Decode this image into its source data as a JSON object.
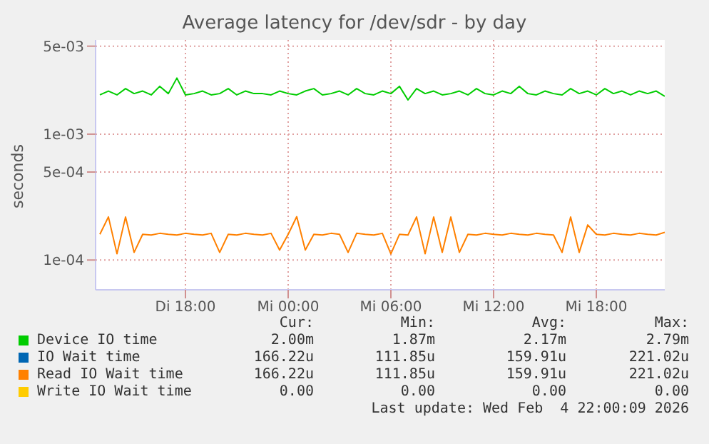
{
  "chart_data": {
    "type": "line",
    "title": "Average latency for /dev/sdr - by day",
    "ylabel": "seconds",
    "x": [
      "2026-02-03T13:00",
      "2026-02-03T13:30",
      "2026-02-03T14:00",
      "2026-02-03T14:30",
      "2026-02-03T15:00",
      "2026-02-03T15:30",
      "2026-02-03T16:00",
      "2026-02-03T16:30",
      "2026-02-03T17:00",
      "2026-02-03T17:30",
      "2026-02-03T18:00",
      "2026-02-03T18:30",
      "2026-02-03T19:00",
      "2026-02-03T19:30",
      "2026-02-03T20:00",
      "2026-02-03T20:30",
      "2026-02-03T21:00",
      "2026-02-03T21:30",
      "2026-02-03T22:00",
      "2026-02-03T22:30",
      "2026-02-03T23:00",
      "2026-02-03T23:30",
      "2026-02-04T00:00",
      "2026-02-04T00:30",
      "2026-02-04T01:00",
      "2026-02-04T01:30",
      "2026-02-04T02:00",
      "2026-02-04T02:30",
      "2026-02-04T03:00",
      "2026-02-04T03:30",
      "2026-02-04T04:00",
      "2026-02-04T04:30",
      "2026-02-04T05:00",
      "2026-02-04T05:30",
      "2026-02-04T06:00",
      "2026-02-04T06:30",
      "2026-02-04T07:00",
      "2026-02-04T07:30",
      "2026-02-04T08:00",
      "2026-02-04T08:30",
      "2026-02-04T09:00",
      "2026-02-04T09:30",
      "2026-02-04T10:00",
      "2026-02-04T10:30",
      "2026-02-04T11:00",
      "2026-02-04T11:30",
      "2026-02-04T12:00",
      "2026-02-04T12:30",
      "2026-02-04T13:00",
      "2026-02-04T13:30",
      "2026-02-04T14:00",
      "2026-02-04T14:30",
      "2026-02-04T15:00",
      "2026-02-04T15:30",
      "2026-02-04T16:00",
      "2026-02-04T16:30",
      "2026-02-04T17:00",
      "2026-02-04T17:30",
      "2026-02-04T18:00",
      "2026-02-04T18:30",
      "2026-02-04T19:00",
      "2026-02-04T19:30",
      "2026-02-04T20:00",
      "2026-02-04T20:30",
      "2026-02-04T21:00",
      "2026-02-04T21:30",
      "2026-02-04T22:00"
    ],
    "series": [
      {
        "name": "Device IO time",
        "color": "#00cc00",
        "values": [
          0.00205,
          0.0022,
          0.00205,
          0.0023,
          0.0021,
          0.0022,
          0.00205,
          0.0024,
          0.0021,
          0.00279,
          0.00205,
          0.0021,
          0.0022,
          0.00205,
          0.0021,
          0.0023,
          0.00205,
          0.0022,
          0.0021,
          0.0021,
          0.00205,
          0.0022,
          0.0021,
          0.00205,
          0.0022,
          0.0023,
          0.00205,
          0.0021,
          0.0022,
          0.00205,
          0.0023,
          0.0021,
          0.00205,
          0.0022,
          0.0021,
          0.0024,
          0.00187,
          0.0023,
          0.0021,
          0.0022,
          0.00205,
          0.0021,
          0.0022,
          0.00205,
          0.0023,
          0.0021,
          0.00205,
          0.0022,
          0.0021,
          0.0024,
          0.0021,
          0.00205,
          0.0022,
          0.0021,
          0.00205,
          0.0023,
          0.0021,
          0.0022,
          0.00205,
          0.0023,
          0.0021,
          0.0022,
          0.00205,
          0.0022,
          0.0021,
          0.0022,
          0.002
        ]
      },
      {
        "name": "IO Wait time",
        "color": "#0066b3",
        "values": [
          null,
          null,
          null,
          null,
          null,
          null,
          null,
          null,
          null,
          null,
          null,
          null,
          null,
          null,
          null,
          null,
          null,
          null,
          null,
          null,
          null,
          null,
          null,
          null,
          null,
          null,
          null,
          null,
          null,
          null,
          null,
          null,
          null,
          null,
          null,
          null,
          null,
          null,
          null,
          null,
          null,
          null,
          null,
          null,
          null,
          null,
          null,
          null,
          null,
          null,
          null,
          null,
          null,
          null,
          null,
          null,
          null,
          null,
          null,
          null,
          null,
          null,
          null,
          null,
          null,
          null,
          null
        ]
      },
      {
        "name": "Read IO Wait time",
        "color": "#ff8000",
        "values": [
          0.00016,
          0.00022,
          0.000112,
          0.00022,
          0.000115,
          0.00016,
          0.000158,
          0.000163,
          0.00016,
          0.000158,
          0.000163,
          0.00016,
          0.000158,
          0.000163,
          0.000115,
          0.00016,
          0.000158,
          0.000163,
          0.00016,
          0.000158,
          0.000163,
          0.00012,
          0.00016,
          0.000221,
          0.00012,
          0.00016,
          0.000158,
          0.000163,
          0.00016,
          0.000115,
          0.000163,
          0.00016,
          0.000158,
          0.000163,
          0.000112,
          0.00016,
          0.000158,
          0.00022,
          0.000112,
          0.00022,
          0.000115,
          0.00022,
          0.000115,
          0.00016,
          0.000158,
          0.000163,
          0.00016,
          0.000158,
          0.000163,
          0.00016,
          0.000158,
          0.000163,
          0.00016,
          0.000158,
          0.000115,
          0.00022,
          0.000115,
          0.00019,
          0.00016,
          0.000158,
          0.000163,
          0.00016,
          0.000158,
          0.000163,
          0.00016,
          0.000158,
          0.000166
        ]
      },
      {
        "name": "Write IO Wait time",
        "color": "#ffcc00",
        "values": [
          null,
          null,
          null,
          null,
          null,
          null,
          null,
          null,
          null,
          null,
          null,
          null,
          null,
          null,
          null,
          null,
          null,
          null,
          null,
          null,
          null,
          null,
          null,
          null,
          null,
          null,
          null,
          null,
          null,
          null,
          null,
          null,
          null,
          null,
          null,
          null,
          null,
          null,
          null,
          null,
          null,
          null,
          null,
          null,
          null,
          null,
          null,
          null,
          null,
          null,
          null,
          null,
          null,
          null,
          null,
          null,
          null,
          null,
          null,
          null,
          null,
          null,
          null,
          null,
          null,
          null,
          null
        ]
      }
    ],
    "log": "y",
    "ylim": [
      5.8e-05,
      0.0056
    ],
    "yticks": [
      {
        "value": 0.0001,
        "label": "1e-04"
      },
      {
        "value": 0.0005,
        "label": "5e-04"
      },
      {
        "value": 0.001,
        "label": "1e-03"
      },
      {
        "value": 0.005,
        "label": "5e-03"
      }
    ],
    "xlim": [
      "2026-02-03T12:45",
      "2026-02-04T22:00"
    ],
    "xticks": [
      {
        "value": "2026-02-03T18:00",
        "label": "Di 18:00"
      },
      {
        "value": "2026-02-04T00:00",
        "label": "Mi 00:00"
      },
      {
        "value": "2026-02-04T06:00",
        "label": "Mi 06:00"
      },
      {
        "value": "2026-02-04T12:00",
        "label": "Mi 12:00"
      },
      {
        "value": "2026-02-04T18:00",
        "label": "Mi 18:00"
      }
    ],
    "grid": true,
    "legend": "bottom",
    "annotations": [
      "Cur:",
      "Min:",
      "Avg:",
      "Max:",
      "2.00m",
      "1.87m",
      "2.17m",
      "2.79m",
      "166.22u",
      "111.85u",
      "159.91u",
      "221.02u",
      "166.22u",
      "111.85u",
      "159.91u",
      "221.02u",
      "0.00",
      "0.00",
      "0.00",
      "0.00",
      "Last update: Wed Feb  4 22:00:09 2026"
    ]
  }
}
